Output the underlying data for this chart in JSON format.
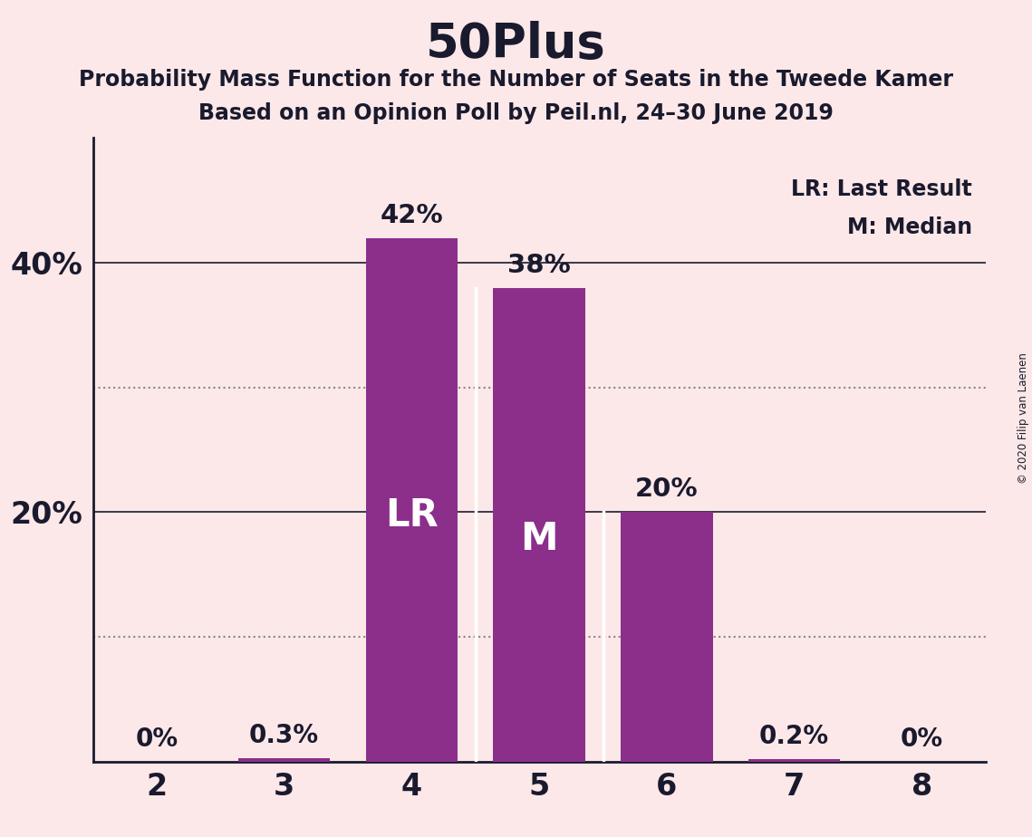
{
  "title": "50Plus",
  "subtitle1": "Probability Mass Function for the Number of Seats in the Tweede Kamer",
  "subtitle2": "Based on an Opinion Poll by Peil.nl, 24–30 June 2019",
  "copyright": "© 2020 Filip van Laenen",
  "categories": [
    2,
    3,
    4,
    5,
    6,
    7,
    8
  ],
  "values": [
    0.0,
    0.003,
    0.42,
    0.38,
    0.2,
    0.002,
    0.0
  ],
  "bar_color": "#8B2F8B",
  "labels": [
    "0%",
    "0.3%",
    "42%",
    "38%",
    "20%",
    "0.2%",
    "0%"
  ],
  "lr_seat": 4,
  "median_seat": 5,
  "lr_label": "LR",
  "median_label": "M",
  "legend_lr": "LR: Last Result",
  "legend_m": "M: Median",
  "ylim": [
    0,
    0.5
  ],
  "solid_gridlines": [
    0.2,
    0.4
  ],
  "dotted_gridlines": [
    0.1,
    0.3
  ],
  "ytick_positions": [
    0.2,
    0.4
  ],
  "ytick_labels": [
    "20%",
    "40%"
  ],
  "background_color": "#fce8e8",
  "bar_width": 0.72,
  "grid_color": "#888888",
  "label_color_inside": "#ffffff",
  "label_color_outside": "#1a1a2e",
  "title_color": "#1a1a2e",
  "axis_color": "#1a1a2e"
}
